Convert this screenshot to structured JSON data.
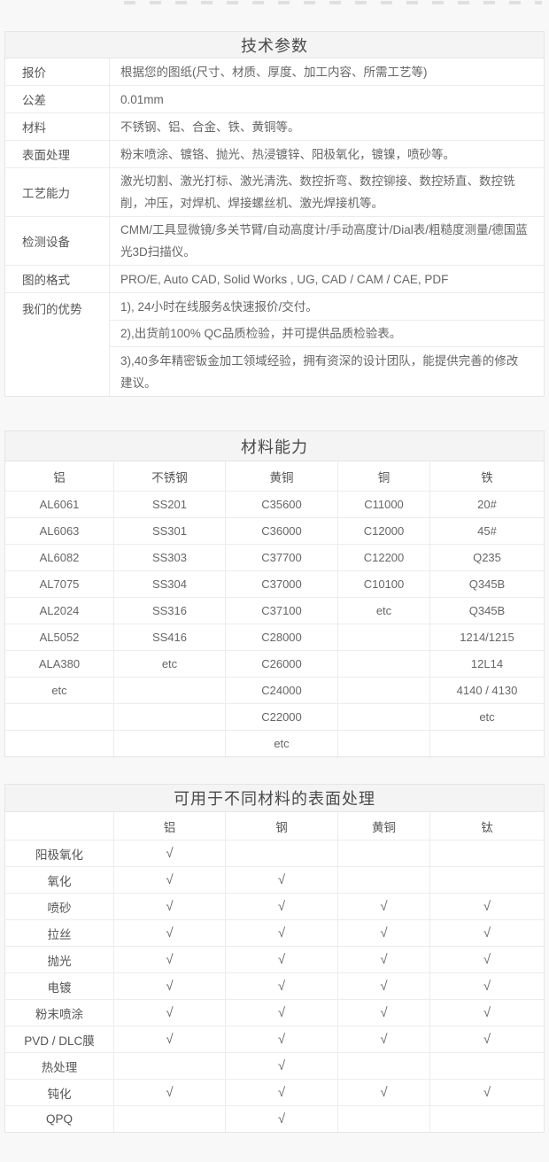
{
  "tech": {
    "title": "技术参数",
    "rows": [
      {
        "label": "报价",
        "value": "根据您的图纸(尺寸、材质、厚度、加工内容、所需工艺等)"
      },
      {
        "label": "公差",
        "value": "0.01mm"
      },
      {
        "label": "材料",
        "value": "不锈钢、铝、合金、铁、黄铜等。"
      },
      {
        "label": "表面处理",
        "value": "粉末喷涂、镀铬、抛光、热浸镀锌、阳极氧化，镀镍，喷砂等。"
      },
      {
        "label": "工艺能力",
        "value": "激光切割、激光打标、激光清洗、数控折弯、数控铆接、数控矫直、数控铣削，冲压，对焊机、焊接螺丝机、激光焊接机等。"
      },
      {
        "label": "检测设备",
        "value": "CMM/工具显微镜/多关节臂/自动高度计/手动高度计/Dial表/粗糙度测量/德国蓝光3D扫描仪。"
      },
      {
        "label": "图的格式",
        "value": "PRO/E, Auto CAD, Solid Works , UG, CAD / CAM / CAE, PDF"
      }
    ],
    "advantages_label": "我们的优势",
    "advantages": [
      "1), 24小时在线服务&快速报价/交付。",
      "2),出货前100% QC品质检验，并可提供品质检验表。",
      "3),40多年精密钣金加工领域经验，拥有资深的设计团队，能提供完善的修改建议。"
    ]
  },
  "materials": {
    "title": "材料能力",
    "columns": [
      "铝",
      "不锈钢",
      "黄铜",
      "铜",
      "铁"
    ],
    "rows": [
      [
        "AL6061",
        "SS201",
        "C35600",
        "C11000",
        "20#"
      ],
      [
        "AL6063",
        "SS301",
        "C36000",
        "C12000",
        "45#"
      ],
      [
        "AL6082",
        "SS303",
        "C37700",
        "C12200",
        "Q235"
      ],
      [
        "AL7075",
        "SS304",
        "C37000",
        "C10100",
        "Q345B"
      ],
      [
        "AL2024",
        "SS316",
        "C37100",
        "etc",
        "Q345B"
      ],
      [
        "AL5052",
        "SS416",
        "C28000",
        "",
        "1214/1215"
      ],
      [
        "ALA380",
        "etc",
        "C26000",
        "",
        "12L14"
      ],
      [
        "etc",
        "",
        "C24000",
        "",
        "4140 / 4130"
      ],
      [
        "",
        "",
        "C22000",
        "",
        "etc"
      ],
      [
        "",
        "",
        "etc",
        "",
        ""
      ]
    ]
  },
  "surface": {
    "title": "可用于不同材料的表面处理",
    "columns": [
      "铝",
      "钢",
      "黄铜",
      "钛"
    ],
    "check_glyph": "√",
    "rows": [
      {
        "label": "阳极氧化",
        "checks": [
          true,
          false,
          false,
          false
        ]
      },
      {
        "label": "氧化",
        "checks": [
          true,
          true,
          false,
          false
        ]
      },
      {
        "label": "喷砂",
        "checks": [
          true,
          true,
          true,
          true
        ]
      },
      {
        "label": "拉丝",
        "checks": [
          true,
          true,
          true,
          true
        ]
      },
      {
        "label": "抛光",
        "checks": [
          true,
          true,
          true,
          true
        ]
      },
      {
        "label": "电镀",
        "checks": [
          true,
          true,
          true,
          true
        ]
      },
      {
        "label": "粉末喷涂",
        "checks": [
          true,
          true,
          true,
          true
        ]
      },
      {
        "label": "PVD / DLC膜",
        "checks": [
          true,
          true,
          true,
          true
        ]
      },
      {
        "label": "热处理",
        "checks": [
          false,
          true,
          false,
          false
        ]
      },
      {
        "label": "钝化",
        "checks": [
          true,
          true,
          true,
          true
        ]
      },
      {
        "label": "QPQ",
        "checks": [
          false,
          true,
          false,
          false
        ]
      }
    ]
  },
  "colors": {
    "page_bg": "#f8f8f9",
    "table_bg": "#ffffff",
    "title_bar_bg": "#f4f4f5",
    "border": "#e5e5e7",
    "inner_border": "#ececee",
    "title_text": "#4a4a4a",
    "label_text": "#555555",
    "value_text": "#666666"
  }
}
